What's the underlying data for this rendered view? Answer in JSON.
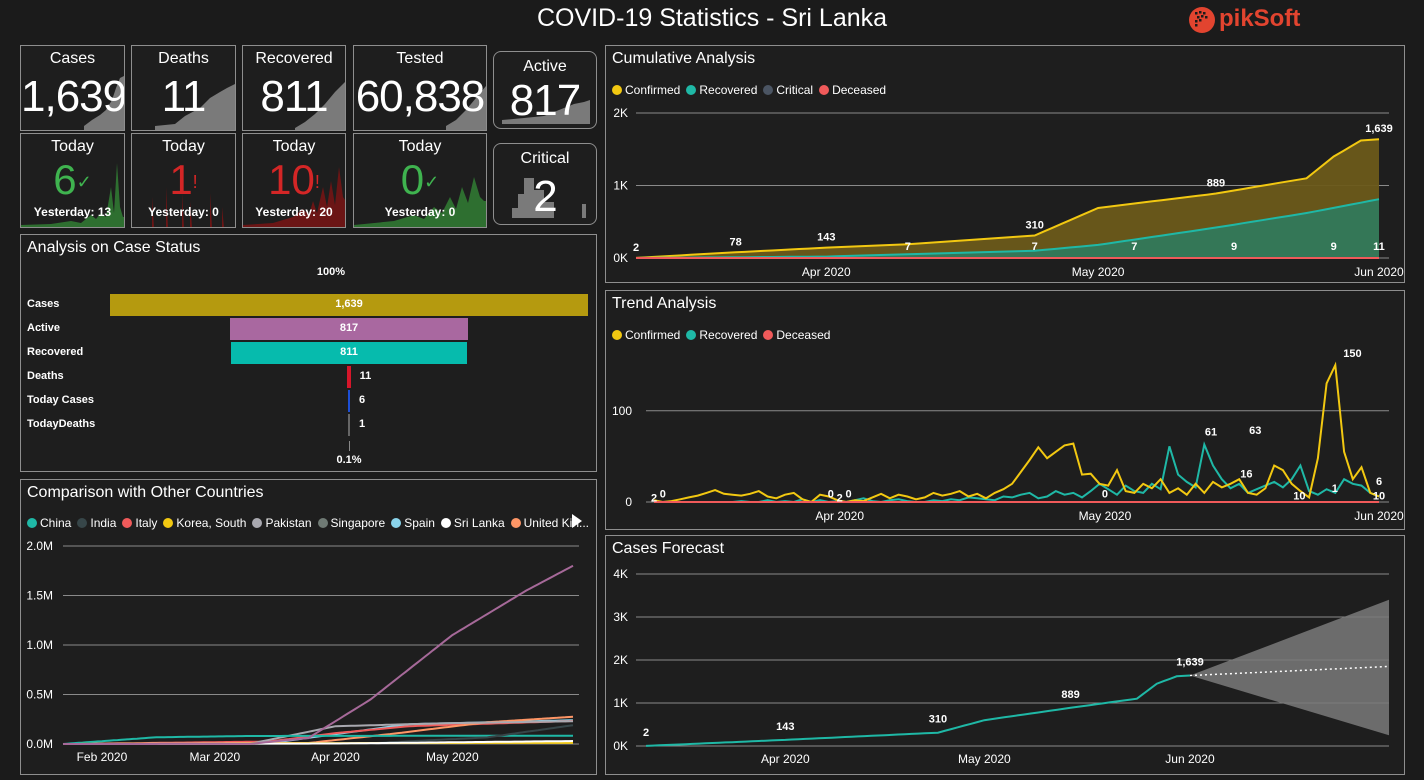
{
  "header": {
    "title": "COVID-19 Statistics - Sri Lanka",
    "brand": "pikSoft"
  },
  "kpis": {
    "cases": {
      "title": "Cases",
      "value": "1,639"
    },
    "deaths": {
      "title": "Deaths",
      "value": "11"
    },
    "recovered": {
      "title": "Recovered",
      "value": "811"
    },
    "tested": {
      "title": "Tested",
      "value": "60,838"
    },
    "active": {
      "title": "Active",
      "value": "817"
    },
    "critical": {
      "title": "Critical",
      "value": "2"
    }
  },
  "today": {
    "cases": {
      "title": "Today",
      "value": "6",
      "mark": "✓",
      "yesterday": "Yesterday: 13"
    },
    "deaths": {
      "title": "Today",
      "value": "1",
      "mark": "!",
      "yesterday": "Yesterday: 0"
    },
    "recovered": {
      "title": "Today",
      "value": "10",
      "mark": "!",
      "yesterday": "Yesterday: 20"
    },
    "tested": {
      "title": "Today",
      "value": "0",
      "mark": "✓",
      "yesterday": "Yesterday: 0"
    }
  },
  "colors": {
    "confirmed": "#f2c811",
    "recovered": "#1fb8a6",
    "critical": "#4b5563",
    "deceased": "#f05a5a",
    "good": "#3fb34f",
    "bad": "#d42626"
  },
  "panels": {
    "case_status": "Analysis on Case Status",
    "comparison": "Comparison with Other Countries",
    "cumulative": "Cumulative Analysis",
    "trend": "Trend Analysis",
    "forecast": "Cases Forecast"
  },
  "case_status": {
    "top_pct": "100%",
    "bottom_pct": "0.1%",
    "rows": [
      {
        "label": "Cases",
        "value": 1639,
        "display": "1,639",
        "color": "#b59a0f"
      },
      {
        "label": "Active",
        "value": 817,
        "display": "817",
        "color": "#a968a0"
      },
      {
        "label": "Recovered",
        "value": 811,
        "display": "811",
        "color": "#06bbad"
      },
      {
        "label": "Deaths",
        "value": 11,
        "display": "11",
        "color": "#d6162a"
      },
      {
        "label": "Today Cases",
        "value": 6,
        "display": "6",
        "color": "#1d4fd6"
      },
      {
        "label": "TodayDeaths",
        "value": 1,
        "display": "1",
        "color": "#666666"
      }
    ]
  },
  "legends": {
    "cumulative": [
      {
        "name": "Confirmed",
        "color": "#f2c811"
      },
      {
        "name": "Recovered",
        "color": "#1fb8a6"
      },
      {
        "name": "Critical",
        "color": "#4b5563"
      },
      {
        "name": "Deceased",
        "color": "#f05a5a"
      }
    ],
    "trend": [
      {
        "name": "Confirmed",
        "color": "#f2c811"
      },
      {
        "name": "Recovered",
        "color": "#1fb8a6"
      },
      {
        "name": "Deceased",
        "color": "#f05a5a"
      }
    ],
    "countries": [
      {
        "name": "China",
        "color": "#1fb8a6"
      },
      {
        "name": "India",
        "color": "#374649"
      },
      {
        "name": "Italy",
        "color": "#f05a5a"
      },
      {
        "name": "Korea, South",
        "color": "#f2c811"
      },
      {
        "name": "Pakistan",
        "color": "#a9a9b0"
      },
      {
        "name": "Singapore",
        "color": "#6f7a74"
      },
      {
        "name": "Spain",
        "color": "#8ad4eb"
      },
      {
        "name": "Sri Lanka",
        "color": "#ffffff"
      },
      {
        "name": "United Kin...",
        "color": "#fe9666"
      }
    ]
  },
  "chart_data": [
    {
      "name": "cumulative",
      "type": "area",
      "x_ticks": [
        "Apr 2020",
        "May 2020",
        "Jun 2020"
      ],
      "y_ticks": [
        "0K",
        "1K",
        "2K"
      ],
      "ylim": [
        0,
        2000
      ],
      "confirmed_labels": [
        {
          "date": "2020-03-11",
          "label": "2"
        },
        {
          "date": "2020-03-22",
          "label": "78"
        },
        {
          "date": "2020-04-01",
          "label": "143"
        },
        {
          "date": "2020-04-24",
          "label": "310"
        },
        {
          "date": "2020-05-14",
          "label": "889"
        },
        {
          "date": "2020-06-01",
          "label": "1,639"
        }
      ],
      "deceased_labels": [
        {
          "date": "2020-04-10",
          "label": "7"
        },
        {
          "date": "2020-04-24",
          "label": "7"
        },
        {
          "date": "2020-05-05",
          "label": "7"
        },
        {
          "date": "2020-05-16",
          "label": "9"
        },
        {
          "date": "2020-05-27",
          "label": "9"
        },
        {
          "date": "2020-06-01",
          "label": "11"
        }
      ]
    },
    {
      "name": "trend",
      "type": "line",
      "x_ticks": [
        "Apr 2020",
        "May 2020",
        "Jun 2020"
      ],
      "y_ticks": [
        "0",
        "100"
      ],
      "ylim": [
        0,
        160
      ],
      "labels": [
        {
          "date": "2020-03-11",
          "label": "2"
        },
        {
          "date": "2020-03-12",
          "label": "0"
        },
        {
          "date": "2020-03-31",
          "label": "0"
        },
        {
          "date": "2020-04-01",
          "label": "2"
        },
        {
          "date": "2020-04-02",
          "label": "0"
        },
        {
          "date": "2020-05-01",
          "label": "0"
        },
        {
          "date": "2020-05-13",
          "label": "61"
        },
        {
          "date": "2020-05-17",
          "label": "16"
        },
        {
          "date": "2020-05-18",
          "label": "63"
        },
        {
          "date": "2020-05-23",
          "label": "10"
        },
        {
          "date": "2020-05-27",
          "label": "1"
        },
        {
          "date": "2020-05-29",
          "label": "150"
        },
        {
          "date": "2020-06-01",
          "label": "6"
        },
        {
          "date": "2020-06-01",
          "label": "10"
        }
      ]
    },
    {
      "name": "countries",
      "type": "line",
      "x_ticks": [
        "Feb 2020",
        "Mar 2020",
        "Apr 2020",
        "May 2020"
      ],
      "y_ticks": [
        "0.0M",
        "0.5M",
        "1.0M",
        "1.5M",
        "2.0M"
      ],
      "ylim": [
        0,
        2000000
      ]
    },
    {
      "name": "forecast",
      "type": "line",
      "x_ticks": [
        "Apr 2020",
        "May 2020",
        "Jun 2020"
      ],
      "y_ticks": [
        "0K",
        "1K",
        "2K",
        "3K",
        "4K"
      ],
      "ylim": [
        0,
        4000
      ],
      "labels": [
        {
          "date": "2020-03-11",
          "label": "2"
        },
        {
          "date": "2020-04-01",
          "label": "143"
        },
        {
          "date": "2020-04-24",
          "label": "310"
        },
        {
          "date": "2020-05-14",
          "label": "889"
        },
        {
          "date": "2020-06-01",
          "label": "1,639"
        }
      ]
    }
  ]
}
